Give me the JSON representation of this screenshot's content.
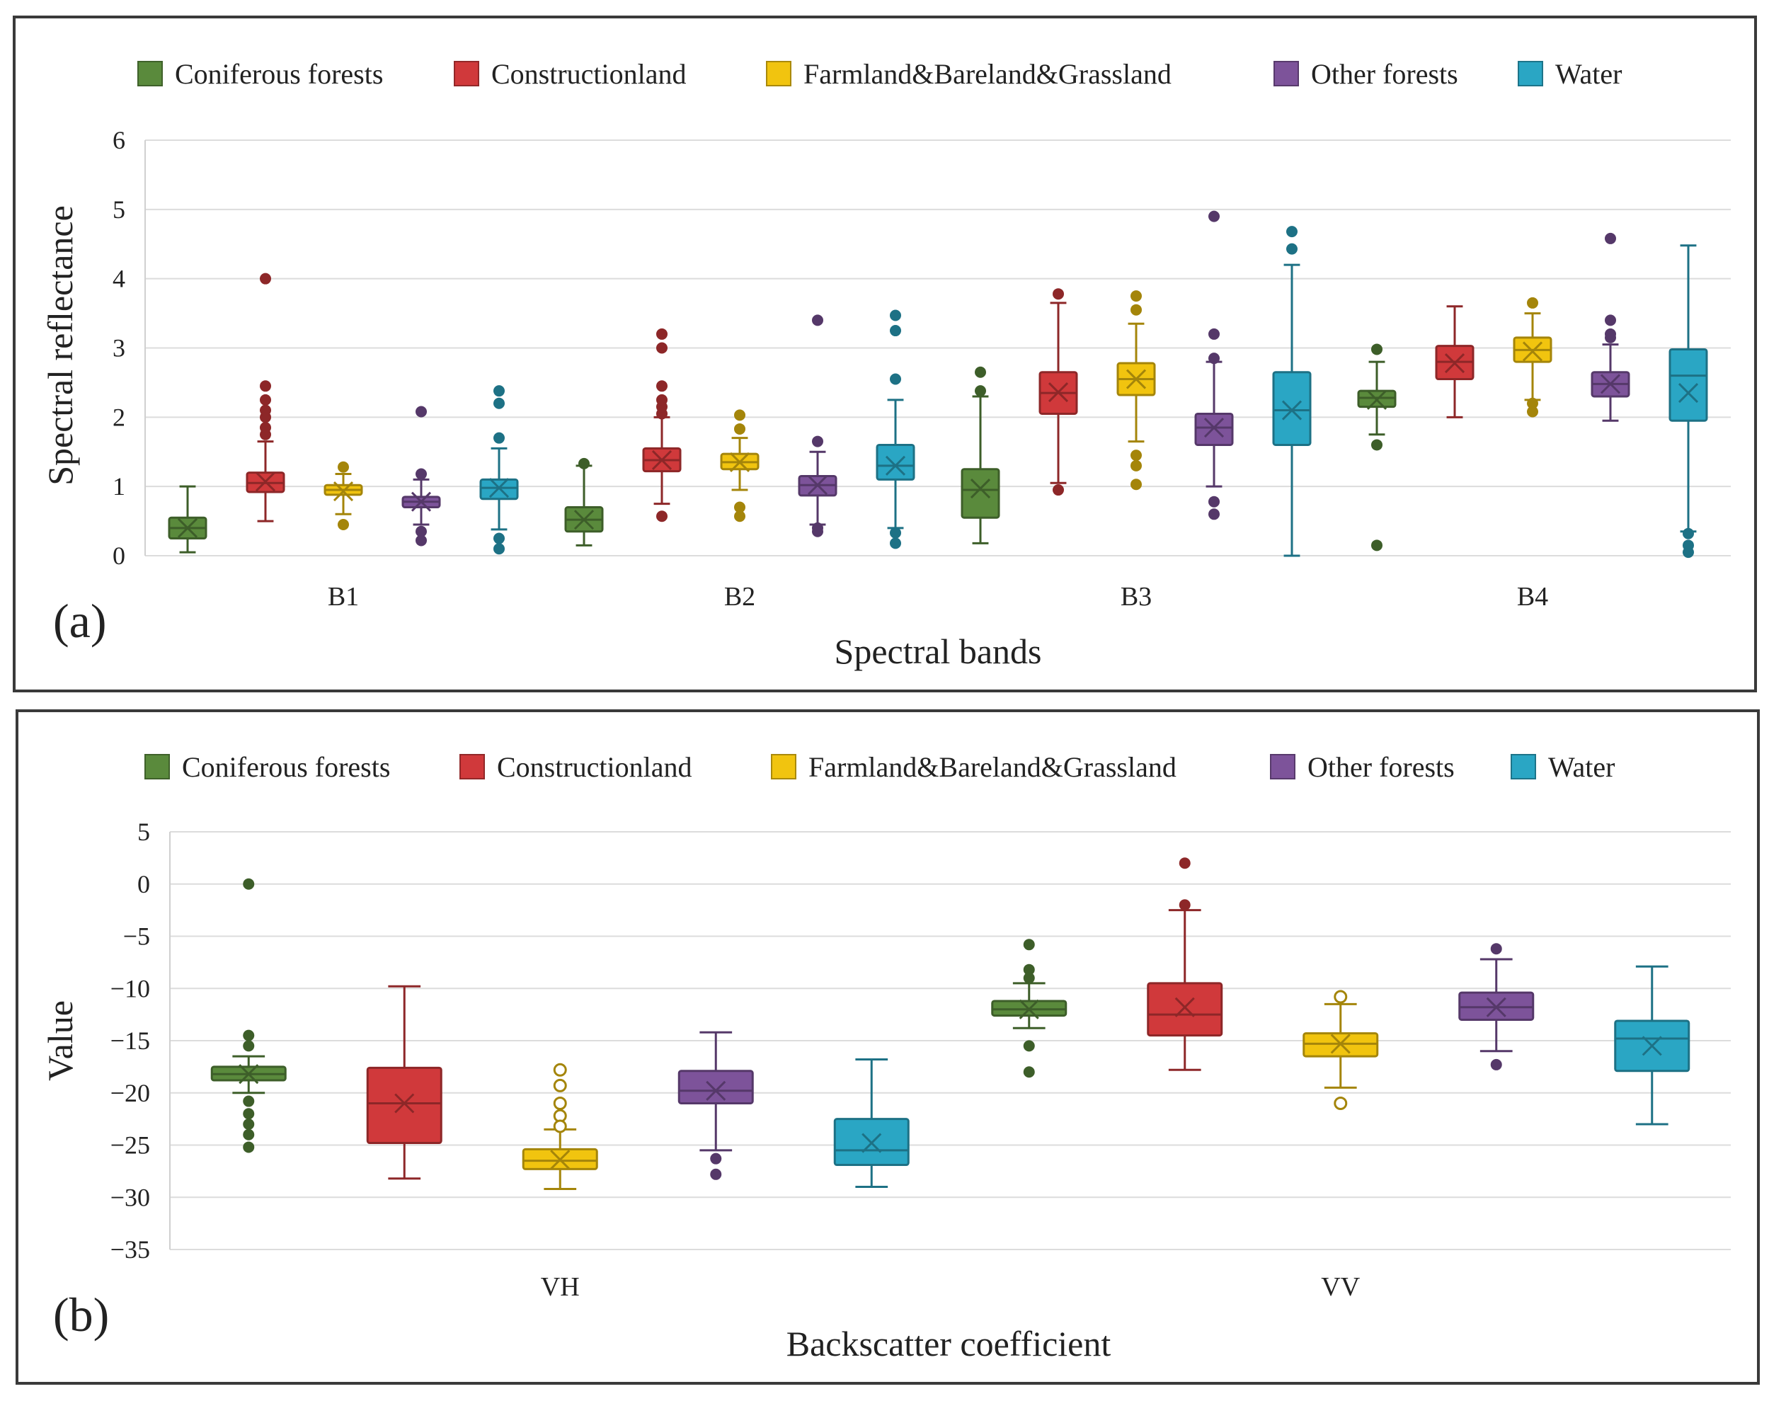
{
  "legend_colors": {
    "Coniferous forests": "#5a8a3c",
    "Constructionland": "#d0393b",
    "Farmland&Bareland&Grassland": "#f1c40f",
    "Other forests": "#7d539a",
    "Water": "#2aa6c4"
  },
  "chart_data": [
    {
      "type": "box",
      "panel_label": "(a)",
      "title": "",
      "xlabel": "Spectral bands",
      "ylabel": "Spectral reflectance",
      "ylim": [
        0,
        6
      ],
      "yticks": [
        0,
        1,
        2,
        3,
        4,
        5,
        6
      ],
      "legend_position": "top",
      "categories": [
        "B1",
        "B2",
        "B3",
        "B4"
      ],
      "series": [
        {
          "name": "Coniferous forests",
          "boxes": [
            {
              "min": 0.05,
              "q1": 0.25,
              "median": 0.4,
              "q3": 0.55,
              "max": 1.0,
              "mean": 0.4,
              "outliers": []
            },
            {
              "min": 0.15,
              "q1": 0.35,
              "median": 0.52,
              "q3": 0.7,
              "max": 1.3,
              "mean": 0.52,
              "outliers": [
                1.33
              ]
            },
            {
              "min": 0.18,
              "q1": 0.55,
              "median": 0.95,
              "q3": 1.25,
              "max": 2.3,
              "mean": 0.97,
              "outliers": [
                2.38,
                2.65
              ]
            },
            {
              "min": 1.75,
              "q1": 2.15,
              "median": 2.28,
              "q3": 2.38,
              "max": 2.8,
              "mean": 2.25,
              "outliers": [
                2.98,
                1.6,
                0.15
              ]
            }
          ]
        },
        {
          "name": "Constructionland",
          "boxes": [
            {
              "min": 0.5,
              "q1": 0.92,
              "median": 1.05,
              "q3": 1.2,
              "max": 1.65,
              "mean": 1.07,
              "outliers": [
                1.75,
                1.85,
                2.0,
                2.1,
                2.25,
                2.45,
                4.0
              ]
            },
            {
              "min": 0.75,
              "q1": 1.22,
              "median": 1.38,
              "q3": 1.55,
              "max": 2.0,
              "mean": 1.38,
              "outliers": [
                0.57,
                2.05,
                2.15,
                2.25,
                2.45,
                3.0,
                3.2
              ]
            },
            {
              "min": 1.05,
              "q1": 2.05,
              "median": 2.35,
              "q3": 2.65,
              "max": 3.65,
              "mean": 2.36,
              "outliers": [
                0.95,
                3.78
              ]
            },
            {
              "min": 2.0,
              "q1": 2.55,
              "median": 2.8,
              "q3": 3.03,
              "max": 3.6,
              "mean": 2.78,
              "outliers": []
            }
          ]
        },
        {
          "name": "Farmland&Bareland&Grassland",
          "boxes": [
            {
              "min": 0.6,
              "q1": 0.88,
              "median": 0.95,
              "q3": 1.02,
              "max": 1.18,
              "mean": 0.93,
              "outliers": [
                0.45,
                1.28
              ]
            },
            {
              "min": 0.95,
              "q1": 1.25,
              "median": 1.35,
              "q3": 1.47,
              "max": 1.7,
              "mean": 1.35,
              "outliers": [
                0.57,
                0.7,
                1.83,
                2.03
              ]
            },
            {
              "min": 1.65,
              "q1": 2.32,
              "median": 2.55,
              "q3": 2.78,
              "max": 3.35,
              "mean": 2.55,
              "outliers": [
                1.03,
                1.3,
                1.45,
                3.55,
                3.75
              ]
            },
            {
              "min": 2.25,
              "q1": 2.8,
              "median": 2.97,
              "q3": 3.15,
              "max": 3.5,
              "mean": 2.95,
              "outliers": [
                2.08,
                2.2,
                3.65
              ]
            }
          ]
        },
        {
          "name": "Other forests",
          "boxes": [
            {
              "min": 0.45,
              "q1": 0.7,
              "median": 0.78,
              "q3": 0.85,
              "max": 1.1,
              "mean": 0.78,
              "outliers": [
                0.22,
                0.35,
                1.18,
                2.08
              ]
            },
            {
              "min": 0.45,
              "q1": 0.87,
              "median": 1.02,
              "q3": 1.15,
              "max": 1.5,
              "mean": 1.02,
              "outliers": [
                0.35,
                0.4,
                1.65,
                3.4
              ]
            },
            {
              "min": 1.0,
              "q1": 1.6,
              "median": 1.85,
              "q3": 2.05,
              "max": 2.8,
              "mean": 1.85,
              "outliers": [
                0.6,
                0.78,
                2.85,
                3.2,
                4.9
              ]
            },
            {
              "min": 1.95,
              "q1": 2.3,
              "median": 2.48,
              "q3": 2.65,
              "max": 3.05,
              "mean": 2.48,
              "outliers": [
                3.15,
                3.2,
                3.4,
                4.58
              ]
            }
          ]
        },
        {
          "name": "Water",
          "boxes": [
            {
              "min": 0.38,
              "q1": 0.82,
              "median": 0.98,
              "q3": 1.1,
              "max": 1.55,
              "mean": 0.98,
              "outliers": [
                0.1,
                0.25,
                1.7,
                2.2,
                2.38
              ]
            },
            {
              "min": 0.4,
              "q1": 1.1,
              "median": 1.3,
              "q3": 1.6,
              "max": 2.25,
              "mean": 1.3,
              "outliers": [
                0.18,
                0.33,
                2.55,
                3.25,
                3.47
              ]
            },
            {
              "min": 0.0,
              "q1": 1.6,
              "median": 2.1,
              "q3": 2.65,
              "max": 4.2,
              "mean": 2.1,
              "outliers": [
                4.43,
                4.68
              ]
            },
            {
              "min": 0.35,
              "q1": 1.95,
              "median": 2.6,
              "q3": 2.98,
              "max": 4.48,
              "mean": 2.35,
              "outliers": [
                0.05,
                0.15,
                0.32
              ]
            }
          ]
        }
      ]
    },
    {
      "type": "box",
      "panel_label": "(b)",
      "title": "",
      "xlabel": "Backscatter coefficient",
      "ylabel": "Value",
      "ylim": [
        -35,
        5
      ],
      "yticks": [
        5,
        0,
        -5,
        -10,
        -15,
        -20,
        -25,
        -30,
        -35
      ],
      "legend_position": "top",
      "categories": [
        "VH",
        "VV"
      ],
      "series": [
        {
          "name": "Coniferous forests",
          "boxes": [
            {
              "min": -20.0,
              "q1": -18.8,
              "median": -18.2,
              "q3": -17.5,
              "max": -16.5,
              "mean": -18.2,
              "outliers": [
                0.0,
                -14.5,
                -15.5,
                -20.8,
                -22.0,
                -23.0,
                -24.0,
                -25.2
              ]
            },
            {
              "min": -13.8,
              "q1": -12.6,
              "median": -12.0,
              "q3": -11.2,
              "max": -9.5,
              "mean": -12.0,
              "outliers": [
                -5.8,
                -8.2,
                -9.0,
                -15.5,
                -18.0
              ]
            }
          ]
        },
        {
          "name": "Constructionland",
          "boxes": [
            {
              "min": -28.2,
              "q1": -24.8,
              "median": -21.0,
              "q3": -17.6,
              "max": -9.8,
              "mean": -21.0,
              "outliers": []
            },
            {
              "min": -17.8,
              "q1": -14.5,
              "median": -12.5,
              "q3": -9.5,
              "max": -2.5,
              "mean": -11.8,
              "outliers": [
                -2.0,
                2.0
              ]
            }
          ]
        },
        {
          "name": "Farmland&Bareland&Grassland",
          "boxes": [
            {
              "min": -29.2,
              "q1": -27.3,
              "median": -26.5,
              "q3": -25.4,
              "max": -23.5,
              "mean": -26.4,
              "outliers": [
                -17.8,
                -19.3,
                -21.0,
                -22.2,
                -23.2
              ]
            },
            {
              "min": -19.5,
              "q1": -16.5,
              "median": -15.3,
              "q3": -14.3,
              "max": -11.5,
              "mean": -15.3,
              "outliers": [
                -10.8,
                -21.0
              ]
            }
          ]
        },
        {
          "name": "Other forests",
          "boxes": [
            {
              "min": -25.5,
              "q1": -21.0,
              "median": -19.8,
              "q3": -17.9,
              "max": -14.2,
              "mean": -19.8,
              "outliers": [
                -26.3,
                -27.8
              ]
            },
            {
              "min": -16.0,
              "q1": -13.0,
              "median": -11.8,
              "q3": -10.4,
              "max": -7.2,
              "mean": -11.8,
              "outliers": [
                -6.2,
                -17.3
              ]
            }
          ]
        },
        {
          "name": "Water",
          "boxes": [
            {
              "min": -29.0,
              "q1": -26.9,
              "median": -25.5,
              "q3": -22.5,
              "max": -16.8,
              "mean": -24.8,
              "outliers": []
            },
            {
              "min": -23.0,
              "q1": -17.9,
              "median": -14.8,
              "q3": -13.1,
              "max": -7.9,
              "mean": -15.5,
              "outliers": []
            }
          ]
        }
      ]
    }
  ]
}
